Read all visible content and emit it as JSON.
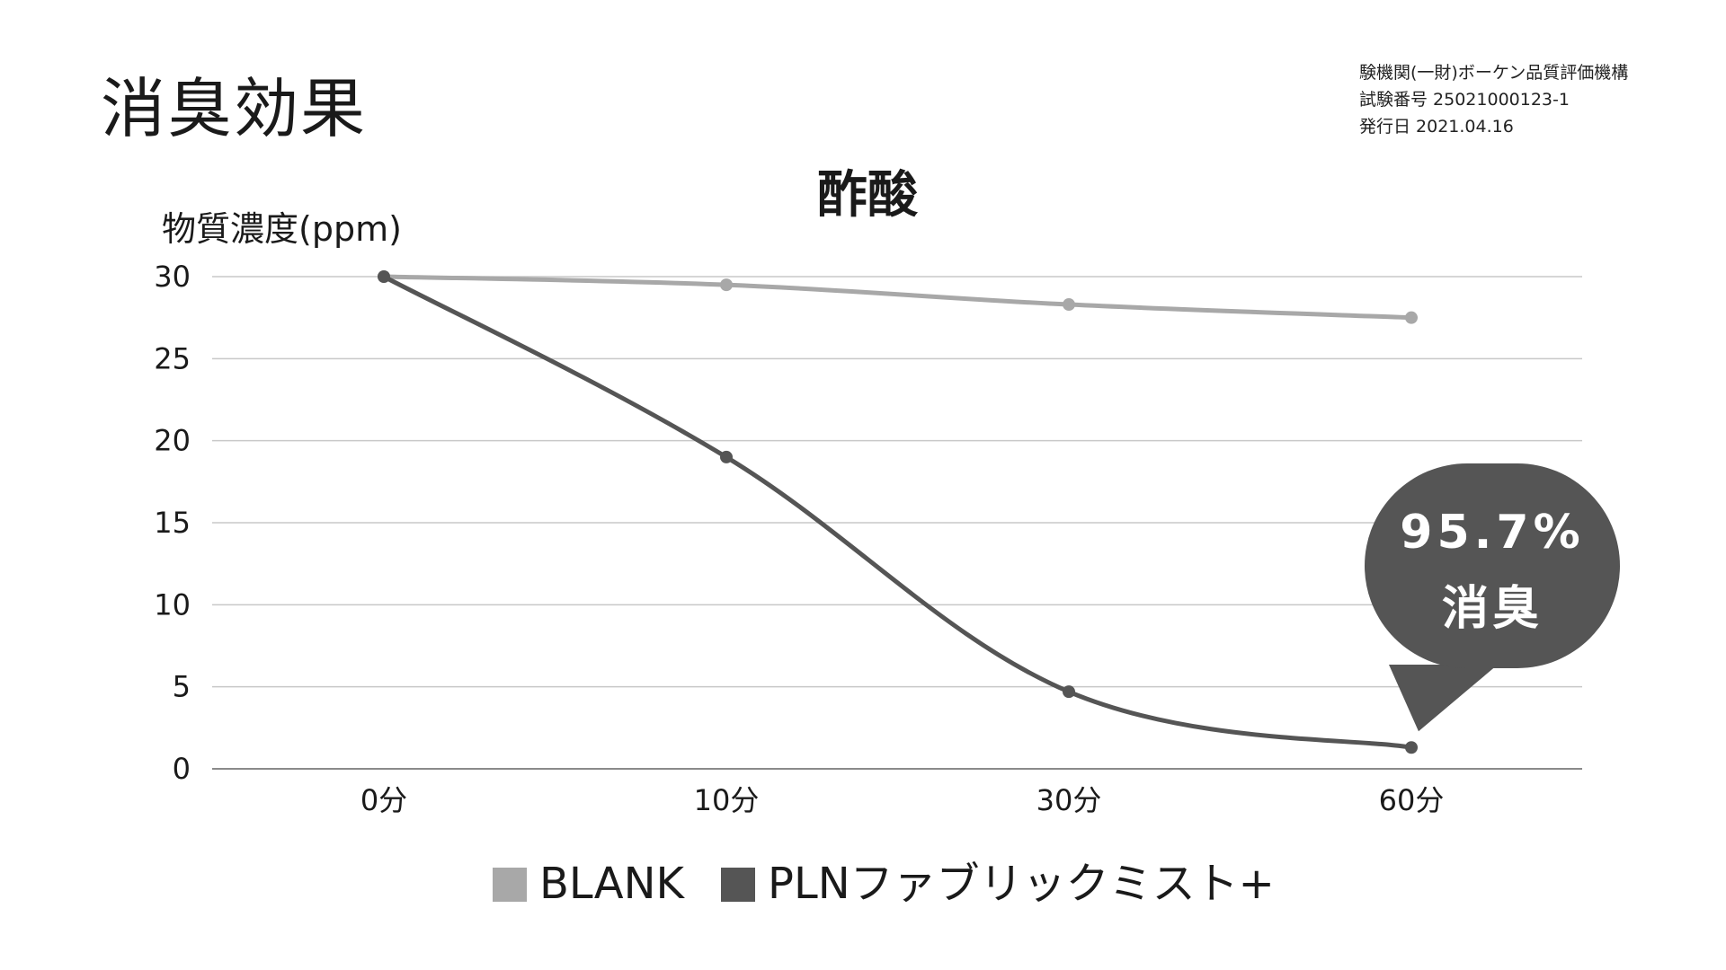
{
  "page": {
    "title": "消臭効果",
    "source_lines": [
      "験機関(一財)ボーケン品質評価機構",
      "試験番号 25021000123-1",
      "発行日 2021.04.16"
    ]
  },
  "chart_data": {
    "type": "line",
    "title": "酢酸",
    "ylabel": "物質濃度(ppm)",
    "xlabel": "",
    "categories": [
      "0分",
      "10分",
      "30分",
      "60分"
    ],
    "ylim": [
      0,
      30
    ],
    "yticks": [
      0,
      5,
      10,
      15,
      20,
      25,
      30
    ],
    "grid": true,
    "legend": "bottom",
    "series": [
      {
        "name": "BLANK",
        "values": [
          30,
          29.5,
          28.3,
          27.5
        ],
        "color": "#a8a8a8"
      },
      {
        "name": "PLNファブリックミスト+",
        "values": [
          30,
          19,
          4.7,
          1.3
        ],
        "color": "#555555"
      }
    ],
    "annotation": {
      "line1": "95.7%",
      "line2": "消臭",
      "target_series": 1,
      "target_index": 3,
      "color": "#555555"
    }
  }
}
